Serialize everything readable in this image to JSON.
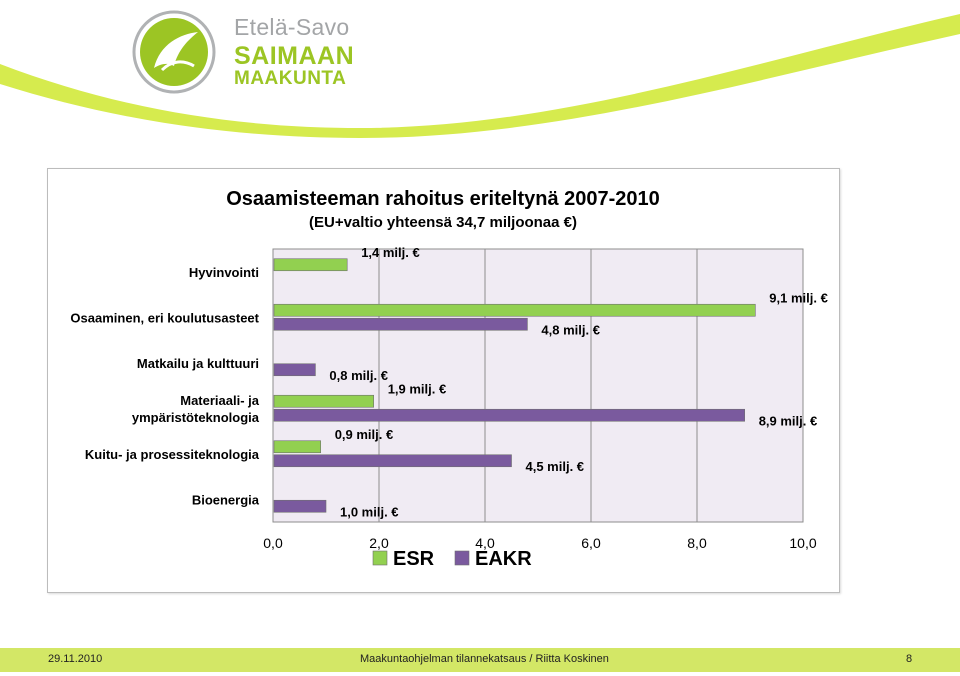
{
  "branding": {
    "line1": "Etelä-Savo",
    "line2": "SAIMAAN",
    "line3": "MAAKUNTA",
    "logo_icon": "leaf-swirl-icon",
    "accent_color": "#9cc524",
    "swoosh_color": "#d6eb4e"
  },
  "chart_data": {
    "type": "bar",
    "orientation": "horizontal",
    "title": "Osaamisteeman rahoitus eriteltynä 2007-2010",
    "subtitle": "(EU+valtio yhteensä 34,7 miljoonaa €)",
    "categories": [
      "Hyvinvointi",
      "Osaaminen, eri koulutusasteet",
      "Matkailu ja kulttuuri",
      "Materiaali- ja ympäristöteknologia",
      "Kuitu- ja prosessiteknologia",
      "Bioenergia"
    ],
    "category_lines": [
      [
        "Hyvinvointi"
      ],
      [
        "Osaaminen, eri koulutusasteet"
      ],
      [
        "Matkailu ja kulttuuri"
      ],
      [
        "Materiaali- ja",
        "ympäristöteknologia"
      ],
      [
        "Kuitu- ja prosessiteknologia"
      ],
      [
        "Bioenergia"
      ]
    ],
    "series": [
      {
        "name": "ESR",
        "color": "#92d050",
        "values": [
          1.4,
          9.1,
          null,
          1.9,
          0.9,
          null
        ],
        "labels": [
          "1,4 milj. €",
          "9,1 milj. €",
          "",
          "1,9 milj. €",
          "0,9 milj. €",
          ""
        ]
      },
      {
        "name": "EAKR",
        "color": "#7a5a9e",
        "values": [
          null,
          4.8,
          0.8,
          8.9,
          4.5,
          1.0
        ],
        "labels": [
          "",
          "4,8 milj. €",
          "0,8 milj. €",
          "8,9 milj. €",
          "4,5 milj. €",
          "1,0 milj. €"
        ]
      }
    ],
    "xlim": [
      0,
      10
    ],
    "xticks": [
      0,
      2,
      4,
      6,
      8,
      10
    ],
    "xtick_labels": [
      "0,0",
      "2,0",
      "4,0",
      "6,0",
      "8,0",
      "10,0"
    ],
    "grid": true,
    "legend_position": "bottom",
    "plot_background": "#f0ebf3"
  },
  "footer": {
    "date": "29.11.2010",
    "center": "Maakuntaohjelman tilannekatsaus / Riitta Koskinen",
    "page": "8",
    "background": "#d3e766"
  }
}
